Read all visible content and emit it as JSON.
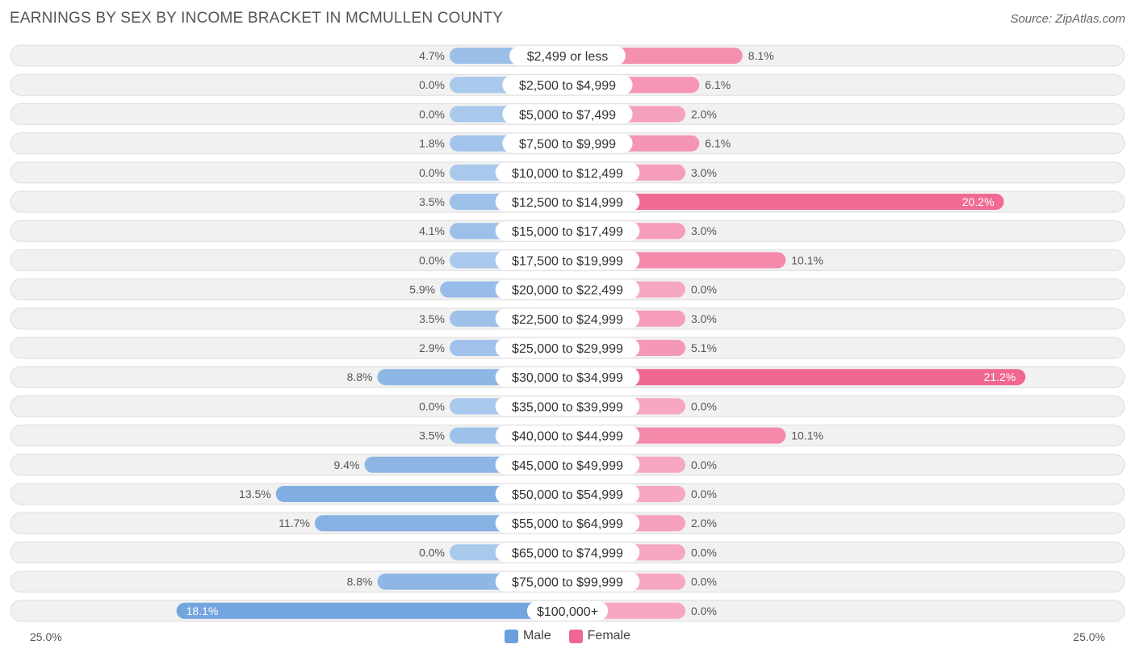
{
  "title": "EARNINGS BY SEX BY INCOME BRACKET IN MCMULLEN COUNTY",
  "source": "Source: ZipAtlas.com",
  "colors": {
    "male": "#6a9fdc",
    "male_light": "#a8c8ec",
    "female": "#f06892",
    "female_light": "#f7a7c0"
  },
  "legend": {
    "male": "Male",
    "female": "Female"
  },
  "axis": {
    "left_label": "25.0%",
    "right_label": "25.0%"
  },
  "chart_data": {
    "type": "bar",
    "orientation": "horizontal-diverging",
    "title": "EARNINGS BY SEX BY INCOME BRACKET IN MCMULLEN COUNTY",
    "xlim": [
      -25.0,
      25.0
    ],
    "unit": "%",
    "categories": [
      "$2,499 or less",
      "$2,500 to $4,999",
      "$5,000 to $7,499",
      "$7,500 to $9,999",
      "$10,000 to $12,499",
      "$12,500 to $14,999",
      "$15,000 to $17,499",
      "$17,500 to $19,999",
      "$20,000 to $22,499",
      "$22,500 to $24,999",
      "$25,000 to $29,999",
      "$30,000 to $34,999",
      "$35,000 to $39,999",
      "$40,000 to $44,999",
      "$45,000 to $49,999",
      "$50,000 to $54,999",
      "$55,000 to $64,999",
      "$65,000 to $74,999",
      "$75,000 to $99,999",
      "$100,000+"
    ],
    "series": [
      {
        "name": "Male",
        "values": [
          4.7,
          0.0,
          0.0,
          1.8,
          0.0,
          3.5,
          4.1,
          0.0,
          5.9,
          3.5,
          2.9,
          8.8,
          0.0,
          3.5,
          9.4,
          13.5,
          11.7,
          0.0,
          8.8,
          18.1
        ],
        "labels": [
          "4.7%",
          "0.0%",
          "0.0%",
          "1.8%",
          "0.0%",
          "3.5%",
          "4.1%",
          "0.0%",
          "5.9%",
          "3.5%",
          "2.9%",
          "8.8%",
          "0.0%",
          "3.5%",
          "9.4%",
          "13.5%",
          "11.7%",
          "0.0%",
          "8.8%",
          "18.1%"
        ]
      },
      {
        "name": "Female",
        "values": [
          8.1,
          6.1,
          2.0,
          6.1,
          3.0,
          20.2,
          3.0,
          10.1,
          0.0,
          3.0,
          5.1,
          21.2,
          0.0,
          10.1,
          0.0,
          0.0,
          2.0,
          0.0,
          0.0,
          0.0
        ],
        "labels": [
          "8.1%",
          "6.1%",
          "2.0%",
          "6.1%",
          "3.0%",
          "20.2%",
          "3.0%",
          "10.1%",
          "0.0%",
          "3.0%",
          "5.1%",
          "21.2%",
          "0.0%",
          "10.1%",
          "0.0%",
          "0.0%",
          "2.0%",
          "0.0%",
          "0.0%",
          "0.0%"
        ]
      }
    ]
  }
}
